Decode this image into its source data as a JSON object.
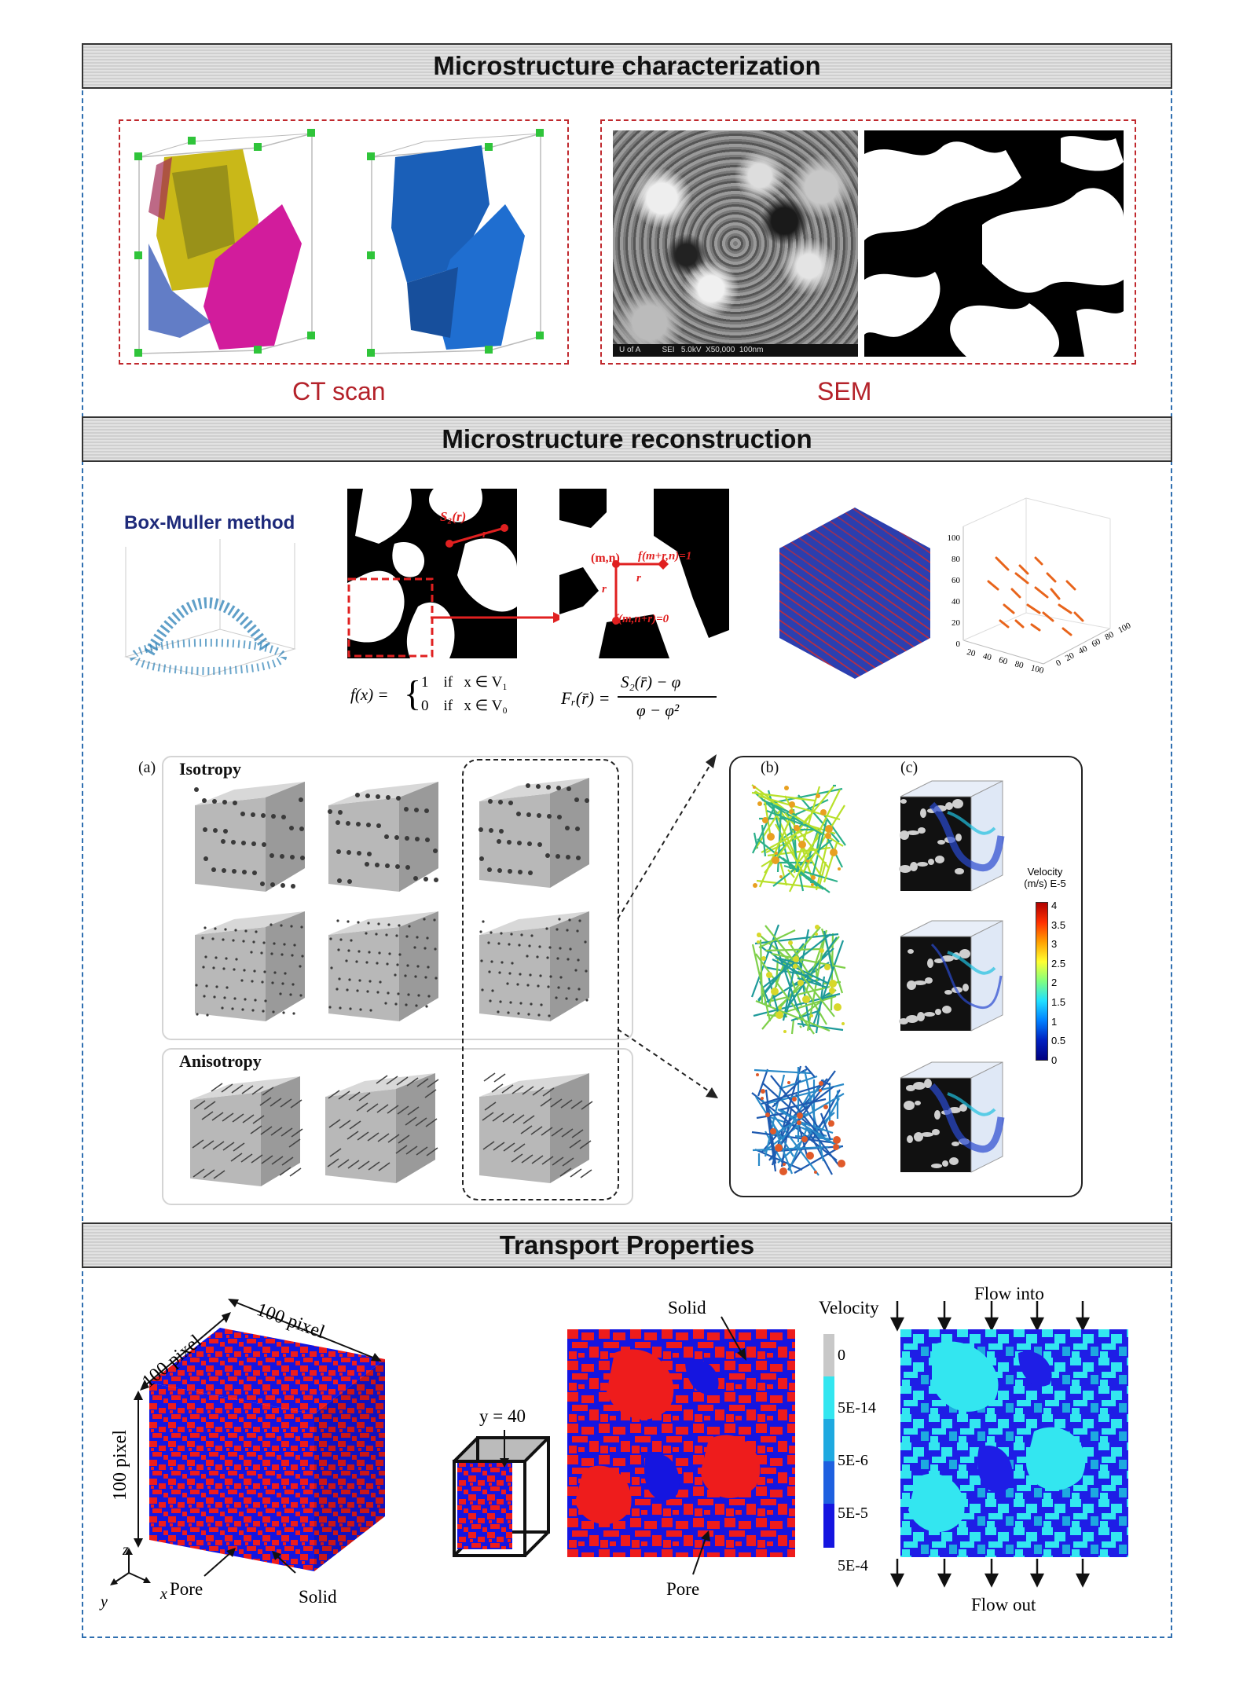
{
  "sections": {
    "characterization": "Microstructure characterization",
    "reconstruction": "Microstructure reconstruction",
    "transport": "Transport Properties"
  },
  "characterization": {
    "ct_label": "CT scan",
    "sem_label": "SEM",
    "sem_footer": "U of A          SEI   5.0kV  X50,000  100nm"
  },
  "reconstruction": {
    "box_muller_title": "Box-Muller method",
    "s2_label": "S₂(r)",
    "r_label": "r",
    "pixel_labels": {
      "mn": "(m,n)",
      "f_right": "f(m+r,n)=1",
      "f_bottom": "f(m,n+r)=0",
      "r": "r"
    },
    "formula_f": "f(x) = { 1  if x ∈ V₁ ; 0  if x ∈ V₀ }",
    "formula_f_lhs": "f(x) =",
    "formula_f_case1": "1    if   x ∈ V₁",
    "formula_f_case0": "0    if   x ∈ V₀",
    "formula_F_lhs": "Fᵣ(r̄) =",
    "formula_F_num": "S₂(r̄) − φ",
    "formula_F_den": "φ − φ²",
    "scatter_axis_z": [
      "0",
      "20",
      "40",
      "60",
      "80",
      "100"
    ],
    "scatter_axis_x": [
      "0",
      "20",
      "40",
      "60",
      "80",
      "100"
    ],
    "scatter_axis_y": [
      "0",
      "20",
      "40",
      "60",
      "80",
      "100"
    ],
    "panel_a": "(a)",
    "isotropy": "Isotropy",
    "anisotropy": "Anisotropy",
    "panel_b": "(b)",
    "panel_c": "(c)",
    "velocity_title": "Velocity",
    "velocity_unit": "(m/s) E-5",
    "velocity_ticks": [
      "4",
      "3.5",
      "3",
      "2.5",
      "2",
      "1.5",
      "1",
      "0.5",
      "0"
    ]
  },
  "transport": {
    "dim_top": "100 pixel",
    "dim_left": "100 pixel",
    "dim_vertical": "100 pixel",
    "axis_z": "z",
    "axis_x": "x",
    "axis_y": "y",
    "pore_left": "Pore",
    "solid_left": "Solid",
    "slice_label": "y = 40",
    "solid_mid": "Solid",
    "pore_mid": "Pore",
    "velocity_title": "Velocity",
    "velocity_ticks": [
      "0",
      "5E-14",
      "5E-6",
      "5E-5",
      "5E-4"
    ],
    "flow_in": "Flow into",
    "flow_out": "Flow out"
  },
  "colors": {
    "frame_border": "#2f6fb0",
    "red_box": "#c0282d",
    "pore_blue": "#1515e0",
    "solid_red": "#ee1c1c",
    "cyan_fast": "#33e6f0",
    "blue_mid": "#1e90d8"
  }
}
